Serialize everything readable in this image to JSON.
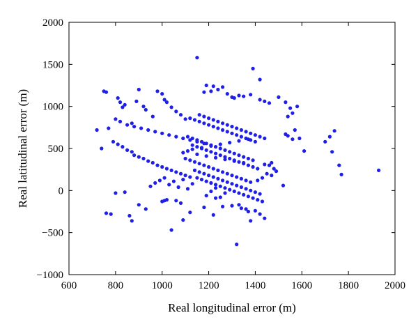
{
  "chart_data": {
    "type": "scatter",
    "title": "",
    "xlabel": "Real longitudinal error (m)",
    "ylabel": "Real latitudinal error (m)",
    "xlim": [
      600,
      2000
    ],
    "ylim": [
      -1000,
      2000
    ],
    "xticks": [
      600,
      800,
      1000,
      1200,
      1400,
      1600,
      1800,
      2000
    ],
    "yticks": [
      -1000,
      -500,
      0,
      500,
      1000,
      1500,
      2000
    ],
    "grid": false,
    "legend": "none",
    "marker_color": "#1f1fe6",
    "series": [
      {
        "x": [
          1150,
          1390,
          1420,
          1190,
          1220,
          1260,
          1240,
          1210,
          1180,
          1280,
          1380,
          1330,
          1350,
          1300,
          1310,
          1420,
          1440,
          1460,
          1500,
          1530,
          1580,
          1550,
          1560,
          1540,
          1570,
          1590,
          1610,
          1530,
          1540,
          1560,
          1700,
          1720,
          1740,
          1730,
          1760,
          1770,
          1930,
          750,
          760,
          720,
          770,
          740,
          810,
          820,
          840,
          830,
          870,
          900,
          890,
          920,
          930,
          960,
          980,
          1000,
          1010,
          1020,
          1040,
          1060,
          1080,
          1100,
          790,
          810,
          830,
          850,
          870,
          880,
          900,
          920,
          940,
          960,
          980,
          1000,
          1020,
          1040,
          1060,
          1080,
          1100,
          1120,
          800,
          820,
          850,
          880,
          910,
          940,
          970,
          1000,
          1030,
          1060,
          1090,
          1120,
          1150,
          1180,
          1120,
          1140,
          1160,
          1180,
          1200,
          1220,
          1240,
          1260,
          1280,
          1300,
          1320,
          1340,
          1360,
          1380,
          1400,
          1130,
          1150,
          1170,
          1190,
          1210,
          1230,
          1250,
          1270,
          1290,
          1310,
          1330,
          1350,
          1370,
          1390,
          1410,
          1140,
          1160,
          1180,
          1200,
          1220,
          1240,
          1260,
          1280,
          1300,
          1320,
          1340,
          1360,
          1380,
          1400,
          1420,
          1150,
          1170,
          1190,
          1210,
          1230,
          1250,
          1270,
          1290,
          1310,
          1330,
          1350,
          1370,
          1390,
          1410,
          1430,
          1100,
          1120,
          1140,
          1160,
          1180,
          1200,
          1220,
          1240,
          1260,
          1280,
          1300,
          1320,
          1340,
          1360,
          1380,
          1110,
          1130,
          1150,
          1170,
          1190,
          1210,
          1230,
          1250,
          1270,
          1290,
          1310,
          1330,
          1350,
          1370,
          1390,
          1160,
          1180,
          1200,
          1220,
          1240,
          1260,
          1280,
          1300,
          1320,
          1340,
          1360,
          1380,
          1400,
          1420,
          1440,
          760,
          780,
          800,
          840,
          860,
          870,
          900,
          930,
          1010,
          1040,
          1090,
          1120,
          1180,
          1220,
          1260,
          1320,
          1330,
          1360,
          1440,
          1380,
          950,
          970,
          990,
          1010,
          1030,
          1050,
          1070,
          1090,
          1110,
          1130,
          1190,
          1210,
          1230,
          1250,
          1270,
          1090,
          1110,
          1130,
          1150,
          1170,
          1190,
          1210,
          1230,
          1250,
          1270,
          1290,
          1310,
          1330,
          1350,
          1370,
          1450,
          1470,
          1480,
          1490,
          1520,
          1460,
          1440,
          1470,
          1430,
          1410,
          1000,
          1020,
          1060,
          1080,
          1300,
          1340,
          1370,
          1400,
          1420,
          1230
        ],
        "y": [
          1580,
          1450,
          1320,
          1250,
          1240,
          1230,
          1200,
          1180,
          1170,
          1150,
          1140,
          1130,
          1120,
          1110,
          1100,
          1080,
          1060,
          1040,
          1110,
          1050,
          1000,
          980,
          920,
          880,
          720,
          620,
          470,
          670,
          650,
          610,
          580,
          640,
          710,
          460,
          300,
          190,
          240,
          1180,
          1170,
          720,
          740,
          500,
          1100,
          1050,
          1020,
          990,
          800,
          1200,
          1060,
          1000,
          960,
          880,
          1180,
          1150,
          1080,
          1050,
          990,
          940,
          900,
          850,
          580,
          550,
          520,
          480,
          460,
          420,
          400,
          380,
          350,
          330,
          300,
          280,
          260,
          240,
          220,
          200,
          180,
          160,
          850,
          820,
          780,
          760,
          740,
          720,
          700,
          680,
          660,
          640,
          620,
          600,
          580,
          560,
          860,
          840,
          820,
          800,
          780,
          760,
          740,
          720,
          700,
          680,
          660,
          640,
          620,
          600,
          580,
          540,
          520,
          500,
          480,
          460,
          440,
          420,
          400,
          380,
          360,
          340,
          320,
          300,
          280,
          260,
          240,
          220,
          200,
          180,
          160,
          140,
          120,
          100,
          80,
          60,
          40,
          20,
          0,
          -20,
          -40,
          150,
          130,
          110,
          90,
          70,
          50,
          30,
          10,
          -10,
          -30,
          -50,
          -70,
          -90,
          -110,
          -130,
          380,
          360,
          340,
          320,
          300,
          280,
          260,
          240,
          220,
          200,
          180,
          160,
          140,
          120,
          100,
          640,
          620,
          600,
          580,
          560,
          540,
          520,
          500,
          480,
          460,
          440,
          420,
          400,
          380,
          360,
          900,
          880,
          860,
          840,
          820,
          800,
          780,
          760,
          740,
          720,
          700,
          680,
          660,
          640,
          620,
          -270,
          -280,
          -30,
          -20,
          -300,
          -360,
          -170,
          -220,
          -120,
          -470,
          -350,
          -260,
          -200,
          -290,
          -190,
          -640,
          -170,
          -220,
          -330,
          -360,
          50,
          90,
          120,
          150,
          70,
          110,
          40,
          130,
          20,
          80,
          -60,
          -10,
          30,
          -80,
          -30,
          450,
          470,
          490,
          430,
          510,
          410,
          530,
          390,
          550,
          370,
          570,
          350,
          590,
          330,
          610,
          200,
          180,
          260,
          230,
          60,
          300,
          310,
          330,
          150,
          120,
          -130,
          -110,
          -120,
          -150,
          -180,
          -210,
          -250,
          -240,
          -280,
          -90
        ]
      }
    ]
  }
}
